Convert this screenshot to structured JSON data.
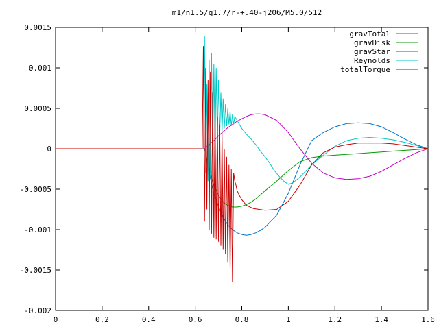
{
  "chart_data": {
    "type": "line",
    "title": "m1/n1.5/q1.7/r-+.40-j206/M5.0/512",
    "xlabel": "",
    "ylabel": "",
    "xlim": [
      0,
      1.6
    ],
    "ylim": [
      -0.002,
      0.0015
    ],
    "x_ticks": [
      0,
      0.2,
      0.4,
      0.6,
      0.8,
      1,
      1.2,
      1.4,
      1.6
    ],
    "x_tick_labels": [
      "0",
      "0.2",
      "0.4",
      "0.6",
      "0.8",
      "1",
      "1.2",
      "1.4",
      "1.6"
    ],
    "y_ticks": [
      0.0015,
      0.001,
      0.0005,
      0,
      -0.0005,
      -0.001,
      -0.0015,
      -0.002
    ],
    "y_tick_labels": [
      "0.0015",
      "0.001",
      "0.0005",
      "0",
      "-0.0005",
      "-0.001",
      "-0.0015",
      "-0.002"
    ],
    "grid": false,
    "legend_position": "top-right",
    "series": [
      {
        "name": "gravTotal",
        "color": "#0072c6",
        "x": [
          0.64,
          0.66,
          0.68,
          0.7,
          0.72,
          0.74,
          0.76,
          0.78,
          0.8,
          0.82,
          0.84,
          0.86,
          0.88,
          0.9,
          0.95,
          1.0,
          1.05,
          1.1,
          1.15,
          1.2,
          1.25,
          1.3,
          1.35,
          1.4,
          1.45,
          1.5,
          1.55,
          1.6
        ],
        "y": [
          0.0,
          -0.0003,
          -0.00055,
          -0.00072,
          -0.00085,
          -0.00094,
          -0.001,
          -0.00104,
          -0.00106,
          -0.00107,
          -0.00106,
          -0.00104,
          -0.00101,
          -0.00097,
          -0.00082,
          -0.00055,
          -0.0002,
          0.0001,
          0.0002,
          0.00027,
          0.00031,
          0.00032,
          0.00031,
          0.00027,
          0.0002,
          0.00012,
          5e-05,
          0.0
        ]
      },
      {
        "name": "gravDisk",
        "color": "#009a00",
        "x": [
          0.64,
          0.66,
          0.68,
          0.7,
          0.72,
          0.74,
          0.76,
          0.78,
          0.8,
          0.82,
          0.84,
          0.86,
          0.88,
          0.9,
          0.95,
          1.0,
          1.05,
          1.1,
          1.15,
          1.2,
          1.25,
          1.3,
          1.35,
          1.4,
          1.45,
          1.5,
          1.55,
          1.6
        ],
        "y": [
          0.0,
          -0.00025,
          -0.00045,
          -0.00058,
          -0.00066,
          -0.0007,
          -0.00072,
          -0.00072,
          -0.00071,
          -0.00069,
          -0.00066,
          -0.00062,
          -0.00057,
          -0.00052,
          -0.0004,
          -0.00027,
          -0.00016,
          -0.00011,
          -9e-05,
          -8e-05,
          -7e-05,
          -6e-05,
          -5e-05,
          -4e-05,
          -3e-05,
          -2e-05,
          -1e-05,
          0.0
        ]
      },
      {
        "name": "gravStar",
        "color": "#c000c0",
        "x": [
          0.64,
          0.66,
          0.68,
          0.7,
          0.72,
          0.74,
          0.76,
          0.78,
          0.8,
          0.82,
          0.84,
          0.86,
          0.88,
          0.9,
          0.95,
          1.0,
          1.05,
          1.1,
          1.15,
          1.2,
          1.25,
          1.3,
          1.35,
          1.4,
          1.45,
          1.5,
          1.55,
          1.6
        ],
        "y": [
          0.0,
          5e-05,
          0.0001,
          0.00016,
          0.00021,
          0.00026,
          0.0003,
          0.00034,
          0.00037,
          0.0004,
          0.00042,
          0.00043,
          0.00043,
          0.00042,
          0.00035,
          0.0002,
          0.0,
          -0.00018,
          -0.0003,
          -0.00036,
          -0.00038,
          -0.00037,
          -0.00034,
          -0.00028,
          -0.0002,
          -0.00012,
          -5e-05,
          0.0
        ]
      },
      {
        "name": "Reynolds",
        "color": "#00c8c8",
        "x": [
          0.62,
          0.635,
          0.64,
          0.645,
          0.65,
          0.655,
          0.66,
          0.665,
          0.67,
          0.675,
          0.68,
          0.685,
          0.69,
          0.695,
          0.7,
          0.705,
          0.71,
          0.715,
          0.72,
          0.725,
          0.73,
          0.735,
          0.74,
          0.745,
          0.75,
          0.755,
          0.76,
          0.765,
          0.77,
          0.78,
          0.79,
          0.8,
          0.82,
          0.84,
          0.86,
          0.88,
          0.9,
          0.92,
          0.94,
          0.96,
          0.98,
          1.0,
          1.02,
          1.05,
          1.1,
          1.15,
          1.2,
          1.25,
          1.3,
          1.35,
          1.4,
          1.45,
          1.5,
          1.55,
          1.6
        ],
        "y": [
          0.0,
          0.0,
          0.00139,
          -0.0003,
          0.0008,
          -0.0004,
          0.0011,
          -0.00035,
          0.00118,
          -0.0001,
          0.00105,
          0.0,
          0.001,
          0.0001,
          0.00085,
          0.00015,
          0.0007,
          0.0002,
          0.00062,
          0.00025,
          0.00055,
          0.00028,
          0.0005,
          0.0003,
          0.00046,
          0.00028,
          0.00043,
          0.0003,
          0.0004,
          0.00035,
          0.0003,
          0.00025,
          0.00018,
          0.00012,
          5e-05,
          -3e-05,
          -0.0001,
          -0.00018,
          -0.00027,
          -0.00034,
          -0.0004,
          -0.00044,
          -0.00042,
          -0.00035,
          -0.0002,
          -8e-05,
          3e-05,
          0.0001,
          0.00013,
          0.00014,
          0.00013,
          0.00011,
          8e-05,
          4e-05,
          0.0
        ]
      },
      {
        "name": "totalTorque",
        "color": "#c80000",
        "x": [
          0.0,
          0.63,
          0.635,
          0.64,
          0.645,
          0.65,
          0.655,
          0.66,
          0.665,
          0.67,
          0.675,
          0.68,
          0.685,
          0.69,
          0.695,
          0.7,
          0.705,
          0.71,
          0.715,
          0.72,
          0.725,
          0.73,
          0.735,
          0.74,
          0.745,
          0.75,
          0.755,
          0.76,
          0.765,
          0.77,
          0.775,
          0.78,
          0.79,
          0.8,
          0.82,
          0.85,
          0.9,
          0.95,
          1.0,
          1.05,
          1.1,
          1.15,
          1.2,
          1.25,
          1.3,
          1.35,
          1.4,
          1.45,
          1.5,
          1.55,
          1.6
        ],
        "y": [
          0.0,
          0.0,
          0.00127,
          -0.0009,
          0.001,
          -0.00075,
          0.00085,
          -0.001,
          0.00095,
          -0.00105,
          0.0007,
          -0.0011,
          0.0005,
          -0.00112,
          0.0004,
          -0.00115,
          0.0003,
          -0.0012,
          0.0002,
          -0.00125,
          0.0,
          -0.0013,
          -0.0001,
          -0.0014,
          -0.0002,
          -0.0015,
          -0.00025,
          -0.00165,
          -0.0003,
          -0.0004,
          -0.00045,
          -0.00052,
          -0.00058,
          -0.00063,
          -0.0007,
          -0.00074,
          -0.00076,
          -0.00075,
          -0.00065,
          -0.00045,
          -0.0002,
          -5e-05,
          2e-05,
          5e-05,
          7e-05,
          7e-05,
          7e-05,
          6e-05,
          4e-05,
          2e-05,
          0.0
        ]
      }
    ]
  }
}
